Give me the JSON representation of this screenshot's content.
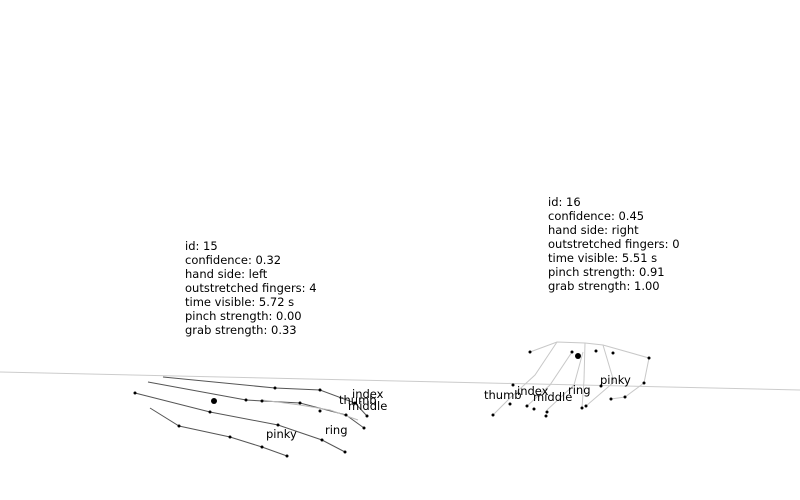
{
  "hands": [
    {
      "id_text": "id: 15",
      "confidence_text": "confidence: 0.32",
      "hand_side_text": "hand side: left",
      "outstretched_text": "outstretched fingers: 4",
      "time_visible_text": "time visible: 5.72 s",
      "pinch_text": "pinch strength: 0.00",
      "grab_text": "grab strength: 0.33",
      "finger_labels": {
        "thumb": "thumb",
        "index": "index",
        "middle": "middle",
        "ring": "ring",
        "pinky": "pinky"
      }
    },
    {
      "id_text": "id: 16",
      "confidence_text": "confidence: 0.45",
      "hand_side_text": "hand side: right",
      "outstretched_text": "outstretched fingers: 0",
      "time_visible_text": "time visible: 5.51 s",
      "pinch_text": "pinch strength: 0.91",
      "grab_text": "grab strength: 1.00",
      "finger_labels": {
        "thumb": "thumb",
        "index": "index",
        "middle": "middle",
        "ring": "ring",
        "pinky": "pinky"
      }
    }
  ],
  "colors": {
    "background": "#ffffff",
    "bone": "#555555",
    "bone_light": "#c8c8c8",
    "joint": "#000000",
    "text": "#000000"
  }
}
